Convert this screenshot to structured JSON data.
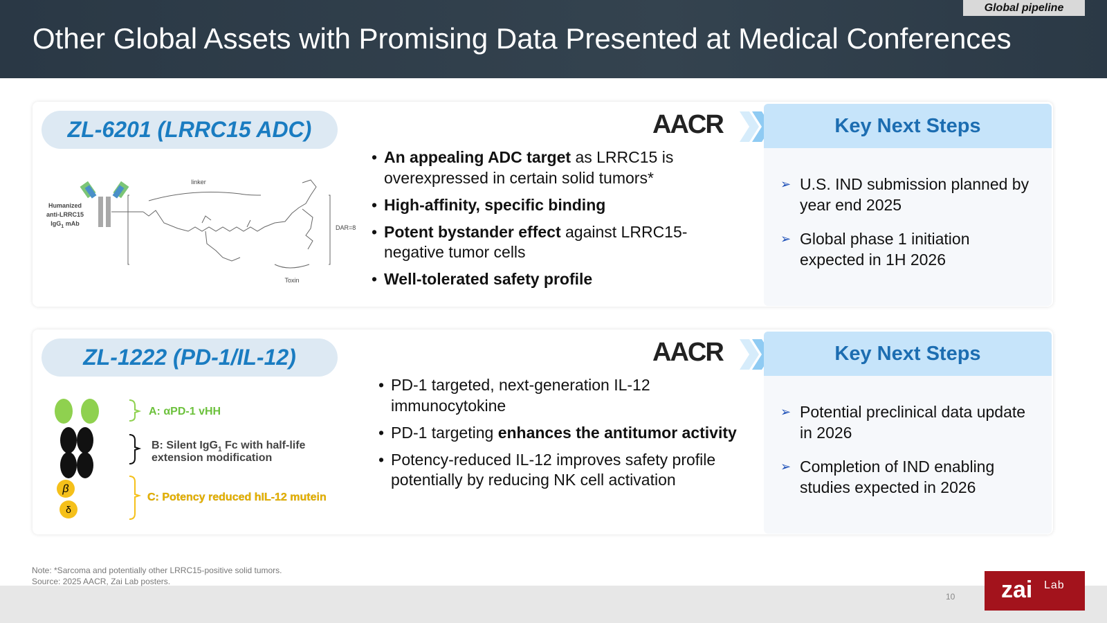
{
  "header": {
    "tag": "Global pipeline",
    "title": "Other Global Assets with Promising Data Presented at Medical Conferences"
  },
  "assets": [
    {
      "name": "ZL-6201 (LRRC15 ADC)",
      "conference": "AACR",
      "diagram": {
        "antibody": [
          "Humanized",
          "anti-LRRC15",
          "IgG",
          "1",
          " mAb"
        ],
        "linker": "linker",
        "dar": "DAR=8",
        "toxin": "Toxin"
      },
      "bullets": [
        [
          "An appealing ADC target",
          " as LRRC15 is overexpressed in certain solid tumors*"
        ],
        [
          "High-affinity, specific binding"
        ],
        [
          "Potent bystander effect",
          " against LRRC15-negative tumor cells"
        ],
        [
          "Well-tolerated safety profile"
        ]
      ],
      "next_steps_title": "Key Next Steps",
      "next_steps": [
        "U.S. IND submission planned by year end 2025",
        "Global phase 1 initiation expected in 1H 2026"
      ]
    },
    {
      "name": "ZL-1222 (PD-1/IL-12)",
      "conference": "AACR",
      "diagram": {
        "a": "A: αPD-1 vHH",
        "b": [
          "B: Silent IgG",
          "1",
          " Fc with half-life",
          "extension modification"
        ],
        "c": "C: Potency reduced hIL-12 mutein",
        "symbols": [
          "β",
          "δ"
        ]
      },
      "bullets": [
        [
          "PD-1 targeted, next-generation IL-12 immunocytokine"
        ],
        [
          "PD-1 targeting ",
          "enhances the antitumor activity"
        ],
        [
          "Potency-reduced IL-12 improves safety profile potentially by reducing NK cell activation"
        ]
      ],
      "next_steps_title": "Key Next Steps",
      "next_steps": [
        "Potential preclinical data update in 2026",
        "Completion of IND enabling studies expected in 2026"
      ]
    }
  ],
  "footer": {
    "note": "Note: *Sarcoma and potentially other LRRC15-positive solid tumors.",
    "source": "Source: 2025 AACR, Zai Lab posters.",
    "page": "10",
    "logo": "zai",
    "logo_sub": "Lab"
  }
}
